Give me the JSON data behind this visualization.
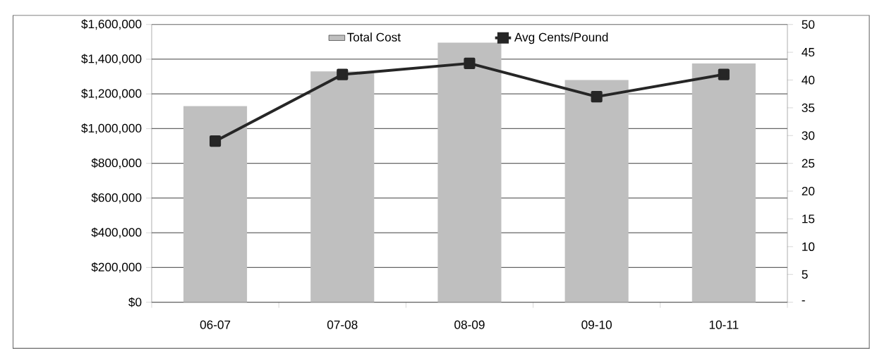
{
  "chart_data": {
    "type": "bar",
    "categories": [
      "06-07",
      "07-08",
      "08-09",
      "09-10",
      "10-11"
    ],
    "series": [
      {
        "name": "Total Cost",
        "color": "#bfbfbf",
        "values": [
          1130000,
          1330000,
          1495000,
          1280000,
          1375000
        ]
      },
      {
        "name": "Avg Cents/Pound",
        "type": "line",
        "axis": "y2",
        "color": "#262626",
        "marker": "square",
        "values": [
          29,
          41,
          43,
          37,
          41
        ]
      }
    ],
    "ylim": [
      0,
      1600000
    ],
    "yticks": [
      {
        "value": 0,
        "label": "$0"
      },
      {
        "value": 200000,
        "label": "$200,000"
      },
      {
        "value": 400000,
        "label": "$400,000"
      },
      {
        "value": 600000,
        "label": "$600,000"
      },
      {
        "value": 800000,
        "label": "$800,000"
      },
      {
        "value": 1000000,
        "label": "$1,000,000"
      },
      {
        "value": 1200000,
        "label": "$1,200,000"
      },
      {
        "value": 1400000,
        "label": "$1,400,000"
      },
      {
        "value": 1600000,
        "label": "$1,600,000"
      }
    ],
    "y2lim": [
      0,
      50
    ],
    "y2ticks": [
      {
        "value": 0,
        "label": "-"
      },
      5,
      10,
      15,
      20,
      25,
      30,
      35,
      40,
      45,
      50
    ],
    "grid": "y",
    "legend": "top"
  }
}
